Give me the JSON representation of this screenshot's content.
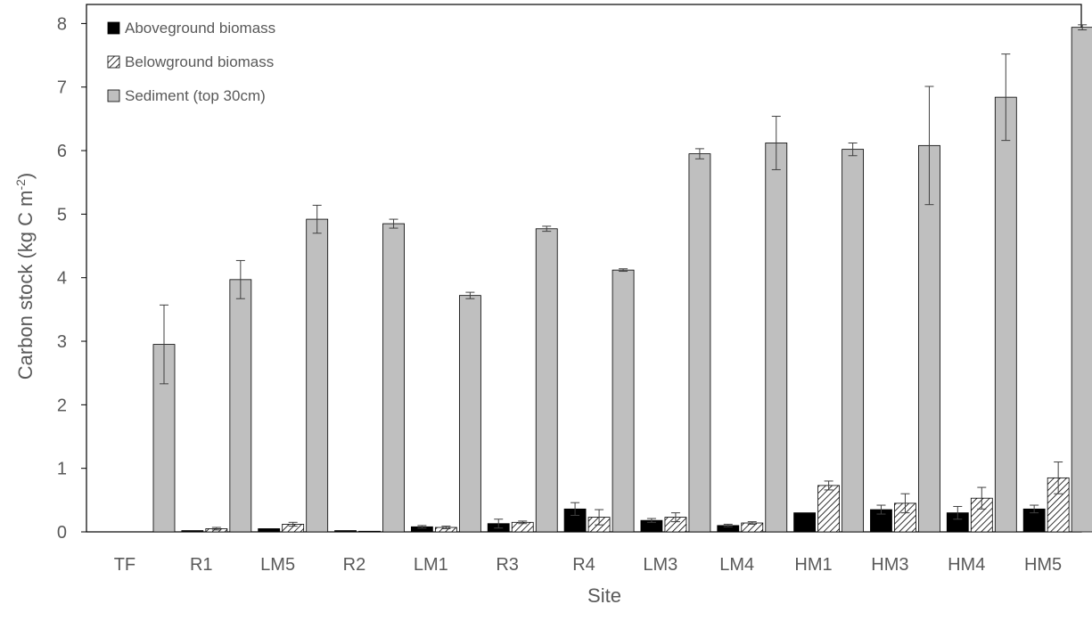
{
  "chart_data": {
    "type": "bar",
    "title": "",
    "xlabel": "Site",
    "ylabel_main": "Carbon stock (kg C m",
    "ylabel_sup": "-2",
    "ylabel_close": ")",
    "ylim": [
      0,
      8.3
    ],
    "yticks": [
      0,
      1,
      2,
      3,
      4,
      5,
      6,
      7,
      8
    ],
    "grid": false,
    "legend_position": "top-left",
    "categories": [
      "TF",
      "R1",
      "LM5",
      "R2",
      "LM1",
      "R3",
      "R4",
      "LM3",
      "LM4",
      "HM1",
      "HM3",
      "HM4",
      "HM5"
    ],
    "series": [
      {
        "name": "Aboveground biomass",
        "pattern": "solid-black",
        "color": "#000000",
        "values": [
          0,
          0.02,
          0.05,
          0.02,
          0.08,
          0.13,
          0.36,
          0.18,
          0.1,
          0.3,
          0.35,
          0.3,
          0.36
        ],
        "errors": [
          0,
          0,
          0,
          0,
          0.02,
          0.07,
          0.1,
          0.03,
          0.02,
          0,
          0.07,
          0.1,
          0.06
        ]
      },
      {
        "name": "Belowground biomass",
        "pattern": "hatched",
        "color": "#000000",
        "values": [
          0,
          0.05,
          0.12,
          0.01,
          0.07,
          0.15,
          0.23,
          0.23,
          0.14,
          0.73,
          0.45,
          0.53,
          0.85
        ],
        "errors": [
          0,
          0.02,
          0.03,
          0,
          0.02,
          0.02,
          0.12,
          0.07,
          0.02,
          0.07,
          0.15,
          0.17,
          0.25
        ]
      },
      {
        "name": "Sediment (top 30cm)",
        "pattern": "solid-gray",
        "color": "#bfbfbf",
        "values": [
          2.95,
          3.97,
          4.92,
          4.85,
          3.72,
          4.77,
          4.12,
          5.95,
          6.12,
          6.02,
          6.08,
          6.84,
          7.94
        ],
        "errors": [
          0.62,
          0.3,
          0.22,
          0.07,
          0.05,
          0.04,
          0.02,
          0.08,
          0.42,
          0.1,
          0.93,
          0.68,
          0.04
        ]
      }
    ]
  }
}
